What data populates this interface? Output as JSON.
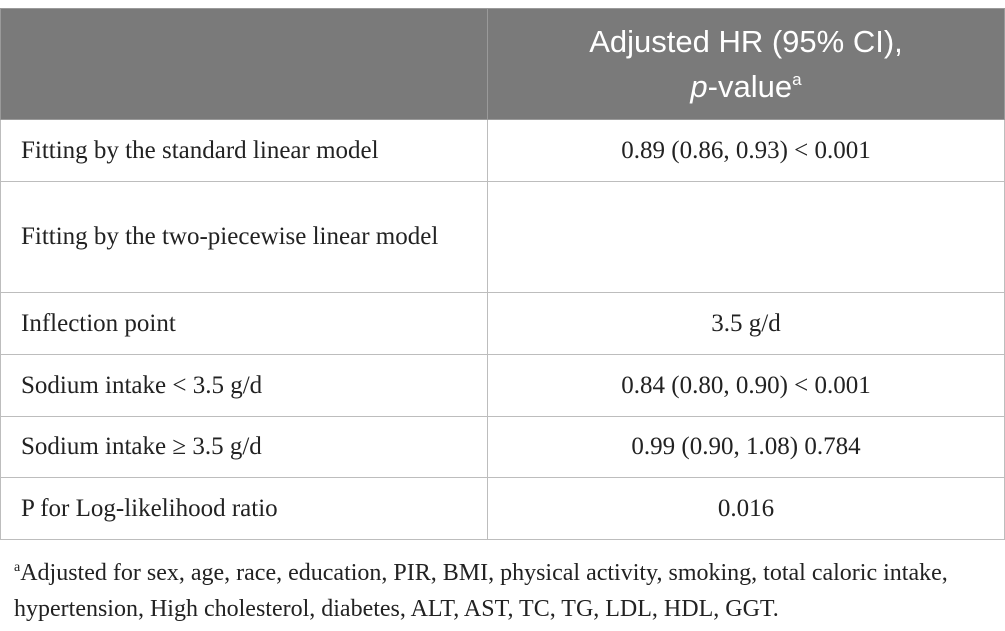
{
  "header": {
    "col2_line1": "Adjusted HR (95% CI),",
    "col2_italic": "p",
    "col2_rest": "-value",
    "col2_sup": "a"
  },
  "rows": [
    {
      "label": "Fitting by the standard linear model",
      "value": "0.89 (0.86, 0.93) < 0.001"
    },
    {
      "label": "Fitting by the two-piecewise linear model",
      "value": ""
    },
    {
      "label": "Inflection point",
      "value": "3.5 g/d"
    },
    {
      "label": "Sodium intake < 3.5 g/d",
      "value": "0.84 (0.80, 0.90) < 0.001"
    },
    {
      "label": "Sodium intake ≥ 3.5 g/d",
      "value": "0.99 (0.90, 1.08) 0.784"
    },
    {
      "label": "P for Log-likelihood ratio",
      "value": "0.016"
    }
  ],
  "footnote": {
    "marker": "a",
    "text": "Adjusted for sex, age, race, education, PIR, BMI, physical activity, smoking, total caloric intake, hypertension, High cholesterol, diabetes, ALT, AST, TC, TG, LDL, HDL, GGT."
  }
}
